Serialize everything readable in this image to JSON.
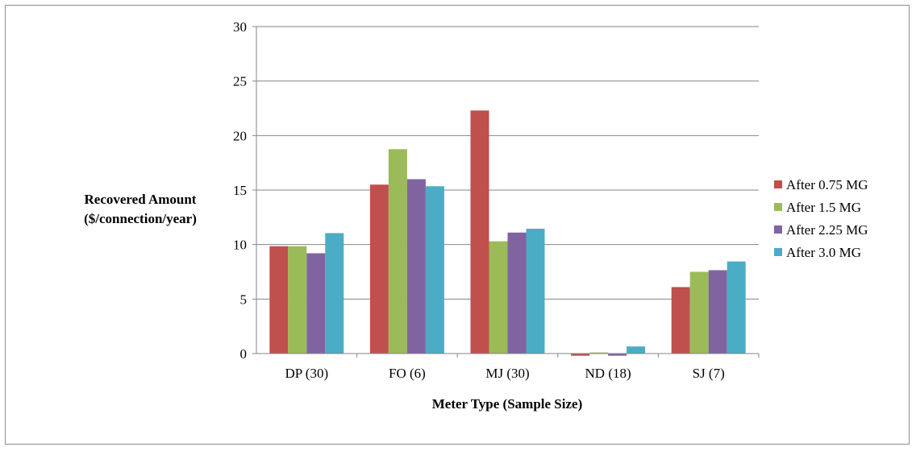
{
  "chart_data": {
    "type": "bar",
    "title": "",
    "xlabel": "Meter Type (Sample Size)",
    "ylabel_lines": [
      "Recovered Amount",
      "($/connection/year)"
    ],
    "ylim": [
      0,
      30
    ],
    "yticks": [
      0,
      5,
      10,
      15,
      20,
      25,
      30
    ],
    "grid": true,
    "legend_position": "right",
    "categories": [
      "DP (30)",
      "FO (6)",
      "MJ (30)",
      "ND (18)",
      "SJ (7)"
    ],
    "series": [
      {
        "name": "After 0.75 MG",
        "color": "#c0504d",
        "values": [
          9.85,
          15.5,
          22.3,
          -0.2,
          6.1
        ]
      },
      {
        "name": "After 1.5 MG",
        "color": "#9bbb59",
        "values": [
          9.85,
          18.75,
          10.3,
          0.1,
          7.5
        ]
      },
      {
        "name": "After 2.25 MG",
        "color": "#8064a2",
        "values": [
          9.2,
          16.0,
          11.1,
          -0.2,
          7.65
        ]
      },
      {
        "name": "After 3.0 MG",
        "color": "#4bacc6",
        "values": [
          11.05,
          15.35,
          11.45,
          0.65,
          8.45
        ]
      }
    ]
  }
}
